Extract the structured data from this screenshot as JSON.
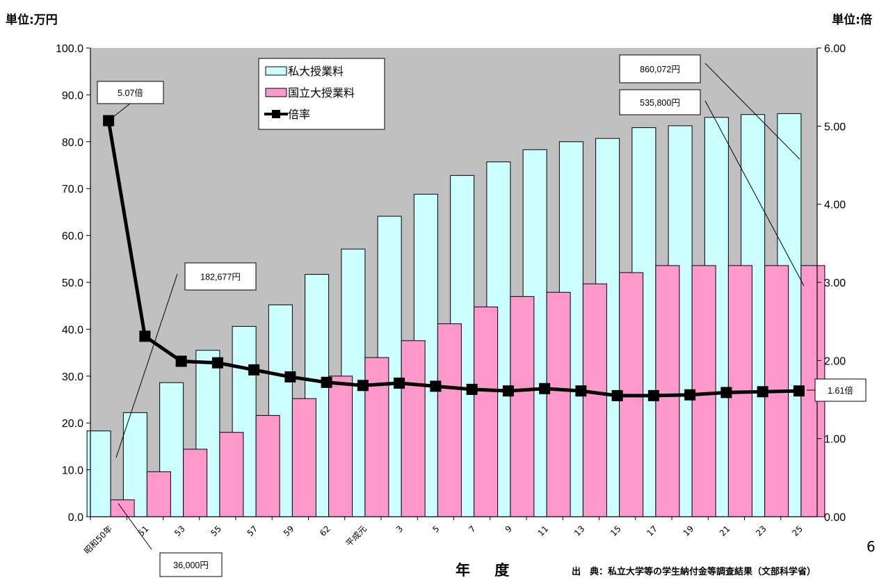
{
  "header": {
    "unit_left": "単位:万円",
    "unit_right": "単位:倍"
  },
  "xaxis_title": "年 度",
  "source": "出　典：私立大学等の学生納付金等調査結果（文部科学省）",
  "page_number": "6",
  "colors": {
    "plot_bg": "#c0c0c0",
    "private_fill": "#ccffff",
    "national_fill": "#ff99cc",
    "ratio_line": "#000000"
  },
  "chart_data": {
    "type": "bar",
    "categories": [
      "昭和50年",
      "51",
      "53",
      "55",
      "57",
      "59",
      "62",
      "平成元",
      "3",
      "5",
      "7",
      "9",
      "11",
      "13",
      "15",
      "17",
      "19",
      "21",
      "23",
      "25"
    ],
    "series": [
      {
        "name": "私大授業料",
        "kind": "bar",
        "axis": "left",
        "values": [
          18.3,
          22.2,
          28.6,
          35.5,
          40.6,
          45.2,
          51.7,
          57.1,
          64.1,
          68.8,
          72.8,
          75.7,
          78.3,
          80.0,
          80.7,
          83.0,
          83.4,
          85.2,
          85.8,
          86.0
        ]
      },
      {
        "name": "国立大授業料",
        "kind": "bar",
        "axis": "left",
        "values": [
          3.6,
          9.6,
          14.4,
          18.0,
          21.6,
          25.2,
          30.0,
          33.96,
          37.56,
          41.16,
          44.76,
          46.98,
          47.88,
          49.68,
          52.08,
          53.58,
          53.58,
          53.58,
          53.58,
          53.58
        ]
      },
      {
        "name": "倍率",
        "kind": "line",
        "axis": "right",
        "values": [
          5.07,
          2.31,
          1.99,
          1.97,
          1.88,
          1.79,
          1.72,
          1.68,
          1.71,
          1.67,
          1.63,
          1.61,
          1.64,
          1.61,
          1.55,
          1.55,
          1.56,
          1.59,
          1.6,
          1.61
        ]
      }
    ],
    "yleft": {
      "min": 0,
      "max": 100,
      "step": 10,
      "ticks": [
        "0.0",
        "10.0",
        "20.0",
        "30.0",
        "40.0",
        "50.0",
        "60.0",
        "70.0",
        "80.0",
        "90.0",
        "100.0"
      ]
    },
    "yright": {
      "min": 0,
      "max": 6,
      "step": 1,
      "ticks": [
        "0.00",
        "1.00",
        "2.00",
        "3.00",
        "4.00",
        "5.00",
        "6.00"
      ]
    },
    "legend": {
      "placement": "top-center",
      "items": [
        {
          "label": "私大授業料",
          "symbol": "box",
          "color": "#ccffff"
        },
        {
          "label": "国立大授業料",
          "symbol": "box",
          "color": "#ff99cc"
        },
        {
          "label": "倍率",
          "symbol": "line-marker",
          "color": "#000000"
        }
      ]
    },
    "annotations": [
      {
        "text": "5.07倍",
        "points_to_category": 0,
        "series": 2
      },
      {
        "text": "182,677円",
        "points_to_category": 0,
        "series": 0
      },
      {
        "text": "36,000円",
        "points_to_category": 0,
        "series": 1
      },
      {
        "text": "860,072円",
        "points_to_category": 19,
        "series": 0
      },
      {
        "text": "535,800円",
        "points_to_category": 19,
        "series": 1
      },
      {
        "text": "1.61倍",
        "points_to_category": 19,
        "series": 2
      }
    ],
    "grid": false
  }
}
